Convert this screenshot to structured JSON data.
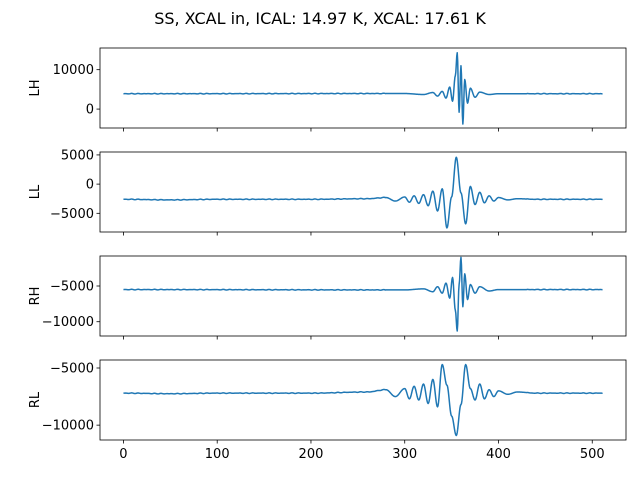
{
  "chart_data": {
    "type": "line",
    "title": "SS, XCAL in, ICAL: 14.97 K, XCAL: 17.61 K",
    "sharex": true,
    "xlim": [
      -25,
      536
    ],
    "xticks": [
      0,
      100,
      200,
      300,
      400,
      500
    ],
    "color": "#1f77b4",
    "grid": false,
    "panels": [
      {
        "ylabel": "LH",
        "ylim": [
          -4800,
          15500
        ],
        "yticks": [
          0,
          10000
        ],
        "baseline": 3900,
        "x": [
          0,
          300,
          320,
          330,
          335,
          340,
          344,
          348,
          351,
          354,
          356,
          358,
          360,
          362,
          364,
          367,
          370,
          375,
          380,
          390,
          400,
          511
        ],
        "y": [
          3900,
          3950,
          3700,
          4200,
          3300,
          4500,
          2800,
          5600,
          2000,
          8500,
          14300,
          -800,
          11000,
          -3800,
          7500,
          1500,
          5300,
          3000,
          4300,
          3700,
          3900,
          3900
        ]
      },
      {
        "ylabel": "LL",
        "ylim": [
          -8200,
          5500
        ],
        "yticks": [
          -5000,
          0,
          5000
        ],
        "baseline": -2600,
        "x": [
          0,
          50,
          100,
          200,
          260,
          280,
          290,
          300,
          305,
          310,
          315,
          320,
          325,
          330,
          335,
          340,
          345,
          350,
          355,
          360,
          365,
          370,
          375,
          380,
          385,
          390,
          395,
          400,
          410,
          420,
          440,
          511
        ],
        "y": [
          -2600,
          -2700,
          -2600,
          -2600,
          -2500,
          -2300,
          -2900,
          -2200,
          -3100,
          -2000,
          -3300,
          -1800,
          -3700,
          -1200,
          -4600,
          -800,
          -7500,
          -2200,
          4600,
          -1500,
          -6800,
          -400,
          -3500,
          -1400,
          -3200,
          -2000,
          -2900,
          -2300,
          -2700,
          -2500,
          -2600,
          -2600
        ]
      },
      {
        "ylabel": "RH",
        "ylim": [
          -12000,
          -800
        ],
        "yticks": [
          -10000,
          -5000
        ],
        "baseline": -5500,
        "x": [
          0,
          300,
          320,
          330,
          335,
          340,
          344,
          348,
          351,
          354,
          356,
          358,
          360,
          362,
          364,
          367,
          370,
          375,
          380,
          390,
          400,
          511
        ],
        "y": [
          -5500,
          -5550,
          -5400,
          -5800,
          -5100,
          -6000,
          -4600,
          -6700,
          -3800,
          -8400,
          -11300,
          -4800,
          -1000,
          -7900,
          -3300,
          -6900,
          -4800,
          -6000,
          -5100,
          -5700,
          -5500,
          -5500
        ]
      },
      {
        "ylabel": "RL",
        "ylim": [
          -11300,
          -4300
        ],
        "yticks": [
          -10000,
          -5000
        ],
        "baseline": -7200,
        "x": [
          0,
          50,
          100,
          200,
          260,
          280,
          290,
          300,
          305,
          310,
          315,
          320,
          325,
          330,
          335,
          340,
          345,
          350,
          355,
          360,
          365,
          370,
          375,
          380,
          385,
          390,
          395,
          400,
          410,
          420,
          440,
          511
        ],
        "y": [
          -7200,
          -7250,
          -7200,
          -7200,
          -7100,
          -6900,
          -7500,
          -6800,
          -7700,
          -6600,
          -7800,
          -6400,
          -8100,
          -6000,
          -8400,
          -4700,
          -6500,
          -9200,
          -10900,
          -8200,
          -4700,
          -6800,
          -7800,
          -6400,
          -7700,
          -6900,
          -7500,
          -7000,
          -7300,
          -7100,
          -7200,
          -7200
        ]
      }
    ]
  }
}
